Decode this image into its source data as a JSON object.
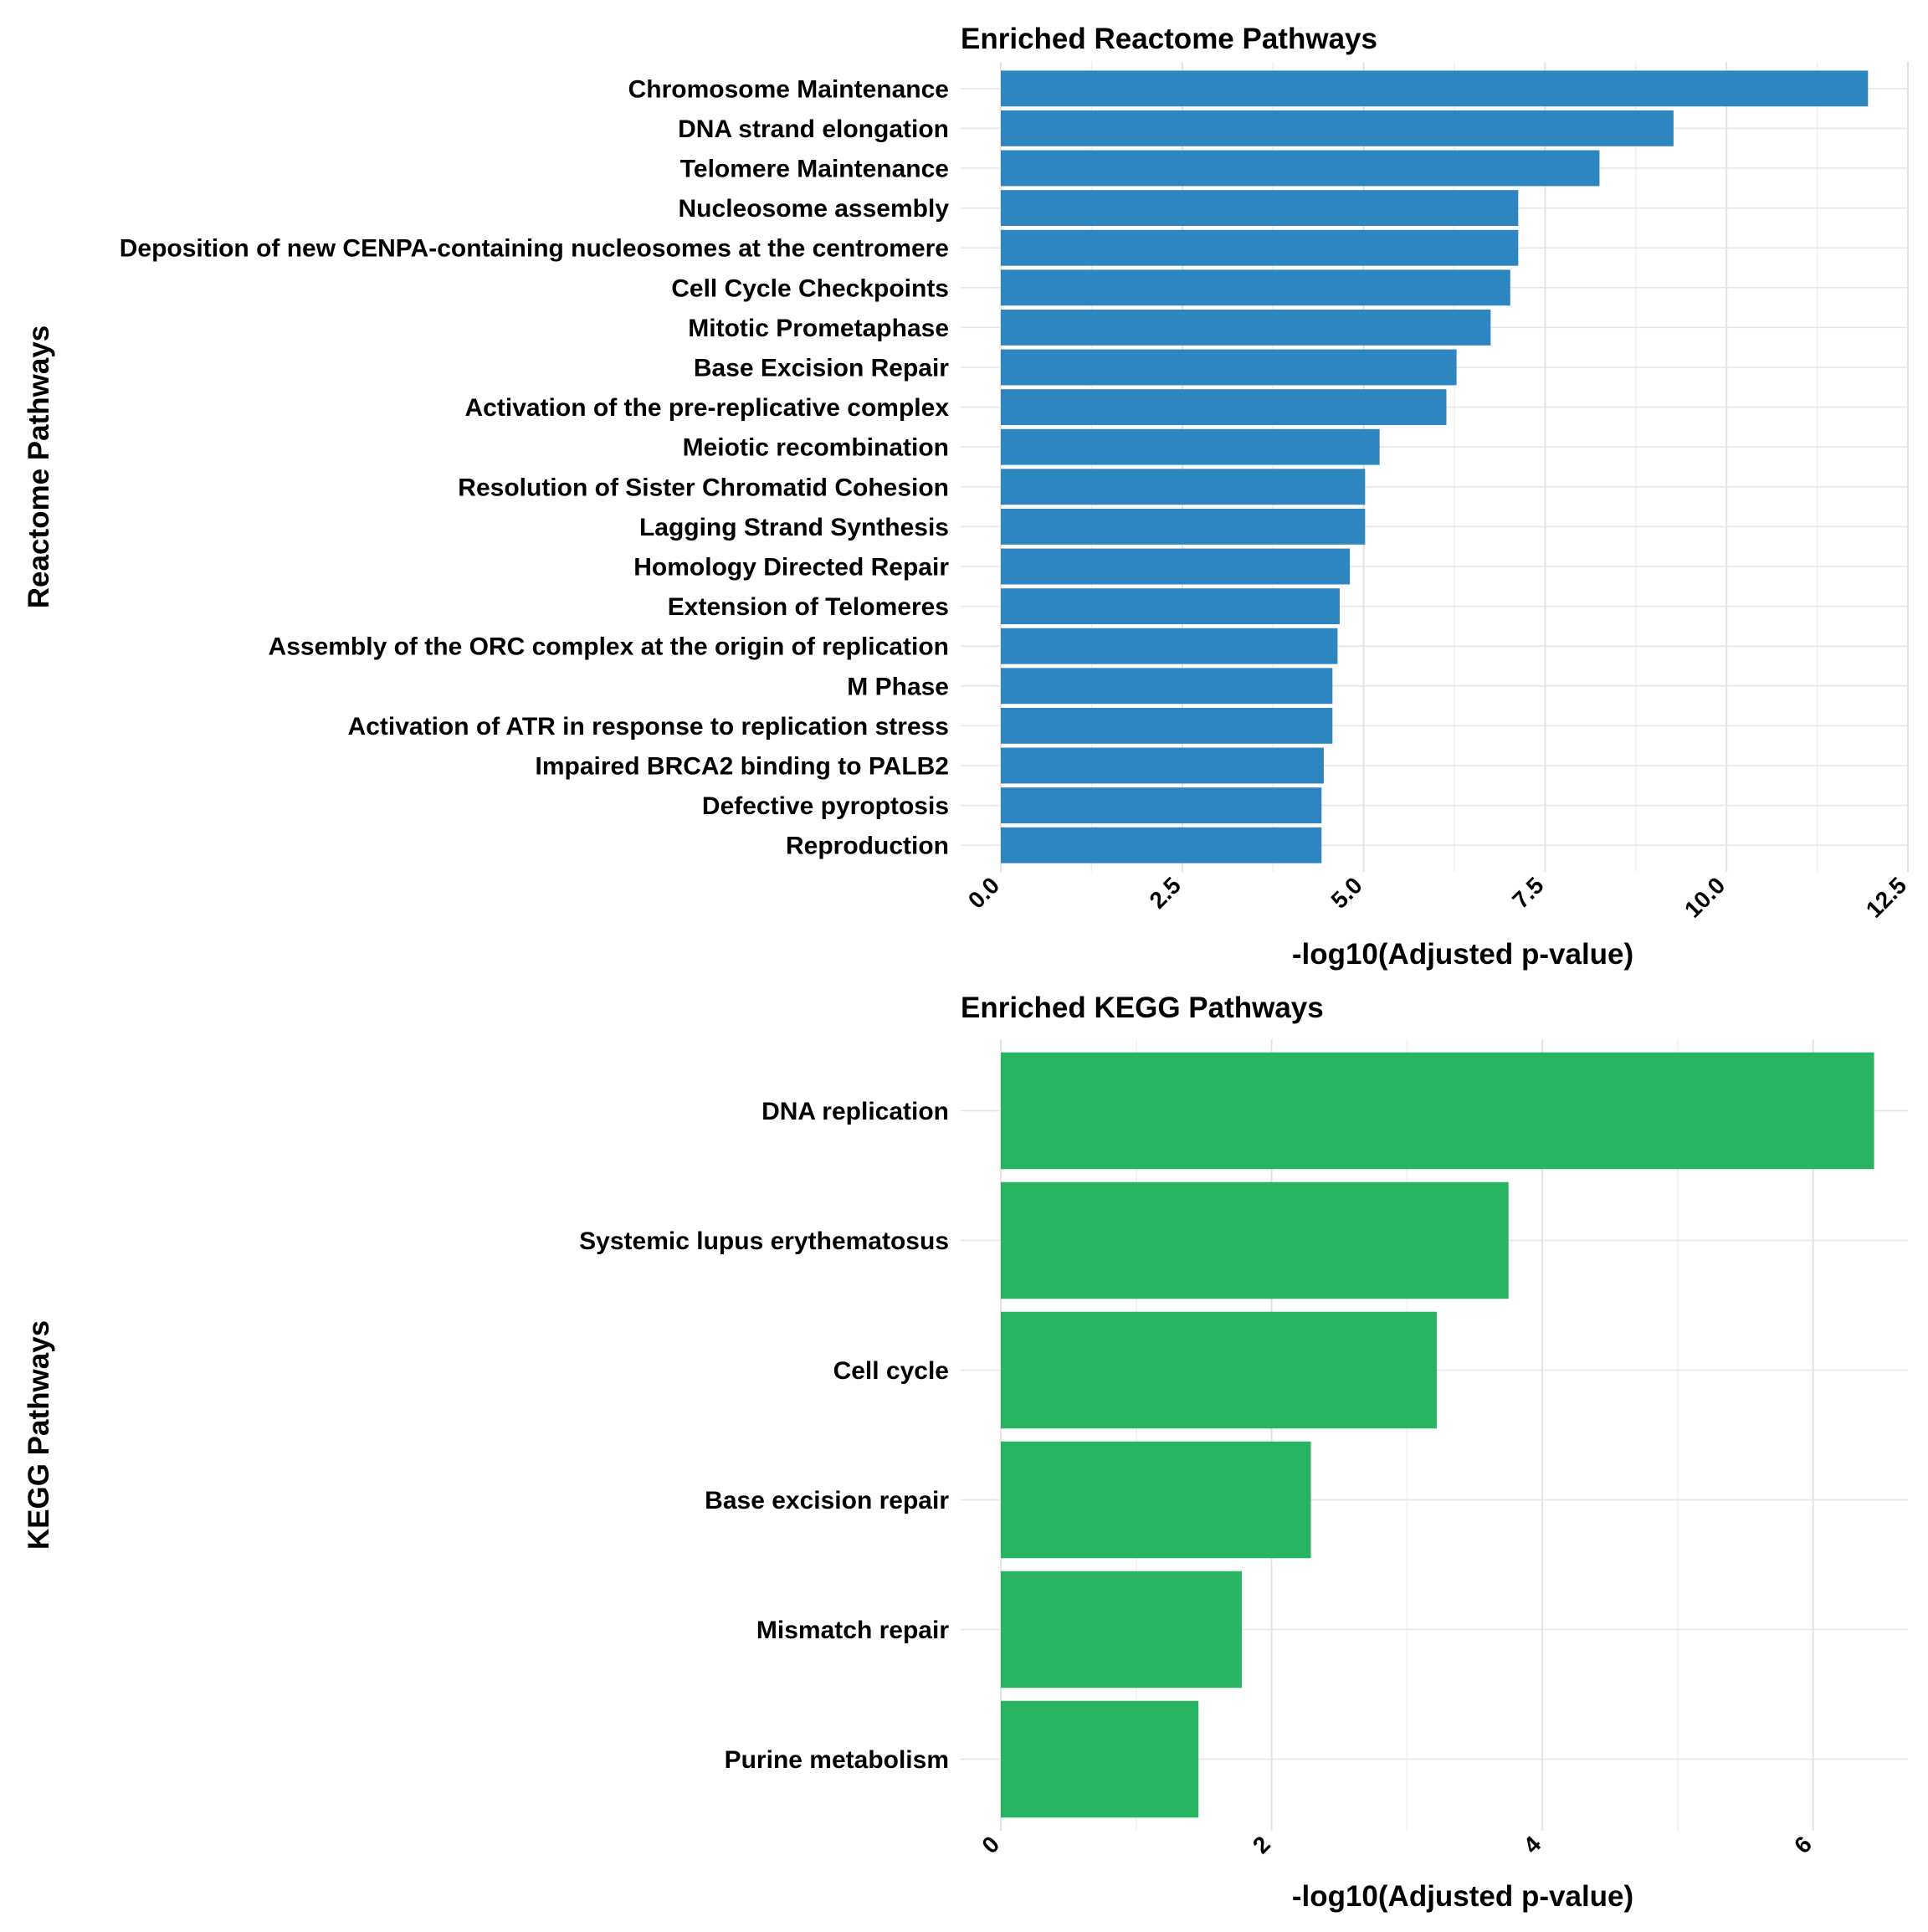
{
  "chart_data": [
    {
      "type": "bar",
      "orientation": "horizontal",
      "title": "Enriched Reactome Pathways",
      "xlabel": "-log10(Adjusted p-value)",
      "ylabel": "Reactome Pathways",
      "color": "#2E86C1",
      "xlim": [
        0,
        12.5
      ],
      "ticks": [
        0,
        2.5,
        5,
        7.5,
        10,
        12.5
      ],
      "tick_labels": [
        "0.0",
        "2.5",
        "5.0",
        "7.5",
        "10.0",
        "12.5"
      ],
      "categories": [
        "Chromosome Maintenance",
        "DNA strand elongation",
        "Telomere Maintenance",
        "Nucleosome assembly",
        "Deposition of new CENPA-containing nucleosomes at the centromere",
        "Cell Cycle Checkpoints",
        "Mitotic Prometaphase",
        "Base Excision Repair",
        "Activation of the pre-replicative complex",
        "Meiotic recombination",
        "Resolution of Sister Chromatid Cohesion",
        "Lagging Strand Synthesis",
        "Homology Directed Repair",
        "Extension of Telomeres",
        "Assembly of the ORC complex at the origin of replication",
        "M Phase",
        "Activation of ATR in response to replication stress",
        "Impaired BRCA2 binding to PALB2",
        "Defective pyroptosis",
        "Reproduction"
      ],
      "values": [
        11.95,
        9.27,
        8.25,
        7.13,
        7.13,
        7.02,
        6.75,
        6.28,
        6.14,
        5.22,
        5.02,
        5.02,
        4.81,
        4.67,
        4.64,
        4.57,
        4.57,
        4.45,
        4.42,
        4.42
      ]
    },
    {
      "type": "bar",
      "orientation": "horizontal",
      "title": "Enriched KEGG Pathways",
      "xlabel": "-log10(Adjusted p-value)",
      "ylabel": "KEGG Pathways",
      "color": "#28B463",
      "xlim": [
        0,
        6.7
      ],
      "ticks": [
        0,
        2,
        4,
        6
      ],
      "tick_labels": [
        "0",
        "2",
        "4",
        "6"
      ],
      "categories": [
        "DNA replication",
        "Systemic lupus erythematosus",
        "Cell cycle",
        "Base excision repair",
        "Mismatch repair",
        "Purine metabolism"
      ],
      "values": [
        6.45,
        3.75,
        3.22,
        2.29,
        1.78,
        1.46
      ]
    }
  ]
}
